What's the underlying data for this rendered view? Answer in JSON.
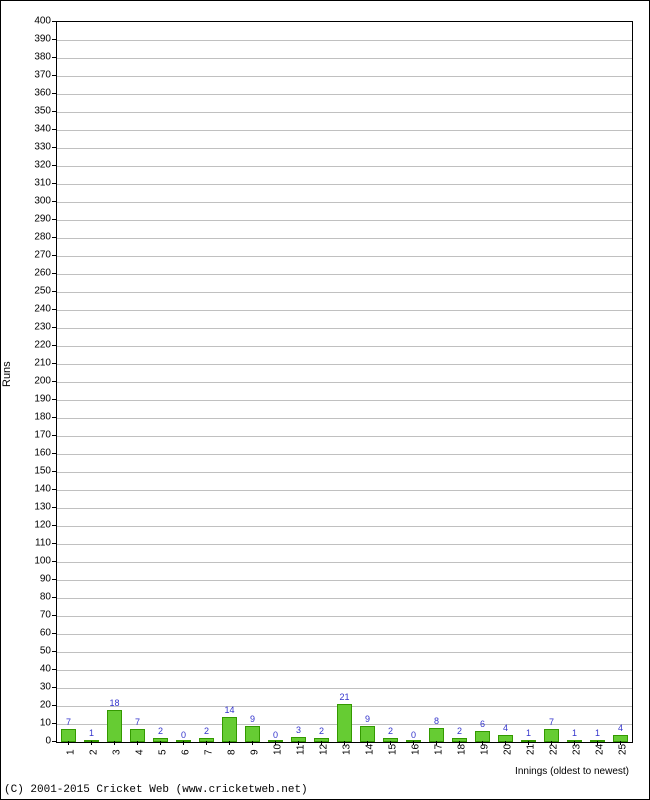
{
  "chart": {
    "type": "bar",
    "ylabel": "Runs",
    "xlabel": "Innings (oldest to newest)",
    "ylim": [
      0,
      400
    ],
    "ytick_step": 10,
    "bar_color": "#66cc33",
    "bar_border_color": "#339900",
    "grid_color": "#c0c0c0",
    "background_color": "#ffffff",
    "value_label_color": "#3333cc",
    "axis_fontsize": 10,
    "label_fontsize": 11,
    "value_fontsize": 9,
    "categories": [
      "1",
      "2",
      "3",
      "4",
      "5",
      "6",
      "7",
      "8",
      "9",
      "10",
      "11",
      "12",
      "13",
      "14",
      "15",
      "16",
      "17",
      "18",
      "19",
      "20",
      "21",
      "22",
      "23",
      "24",
      "25"
    ],
    "values": [
      7,
      1,
      18,
      7,
      2,
      0,
      2,
      14,
      9,
      0,
      3,
      2,
      21,
      9,
      2,
      0,
      8,
      2,
      6,
      4,
      1,
      7,
      1,
      1,
      4
    ]
  },
  "copyright": "(C) 2001-2015 Cricket Web (www.cricketweb.net)"
}
